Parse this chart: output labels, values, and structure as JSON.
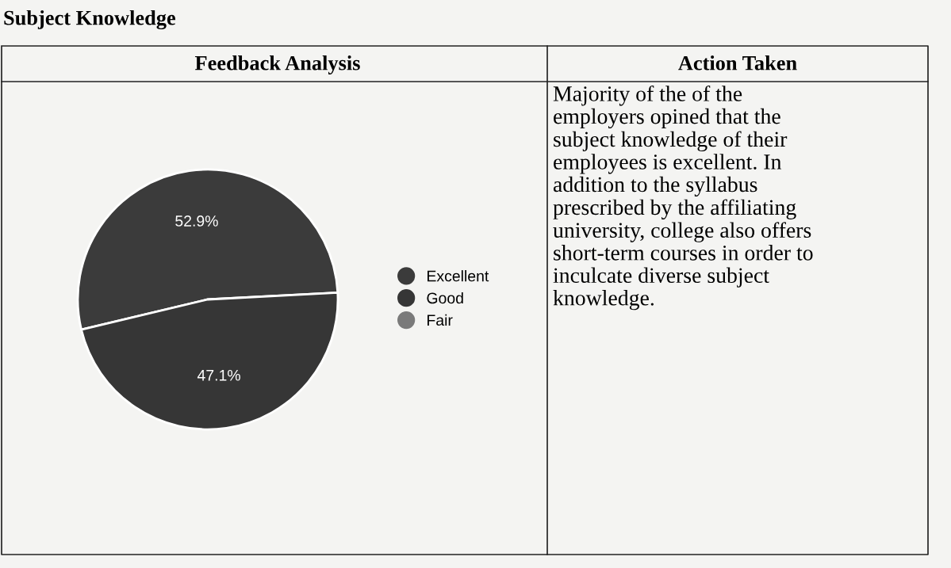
{
  "chart_data": {
    "type": "pie",
    "title": "Subject Knowledge",
    "subtitle": "Feedback Analysis",
    "categories": [
      "Excellent",
      "Good",
      "Fair"
    ],
    "values": [
      52.9,
      47.1,
      0
    ],
    "colors": [
      "#3b3b3b",
      "#363636",
      "#7a7a7a"
    ],
    "value_labels": [
      "52.9%",
      "47.1%",
      null
    ],
    "legend": "right",
    "annotations": [
      "Action Taken",
      "Majority of the of the\nemployers opined that the\nsubject knowledge of their\nemployees is excellent. In\naddition to the syllabus\nprescribed by the affiliating\nuniversity, college also offers\nshort-term courses in order to\ninculcate diverse subject\nknowledge."
    ]
  }
}
